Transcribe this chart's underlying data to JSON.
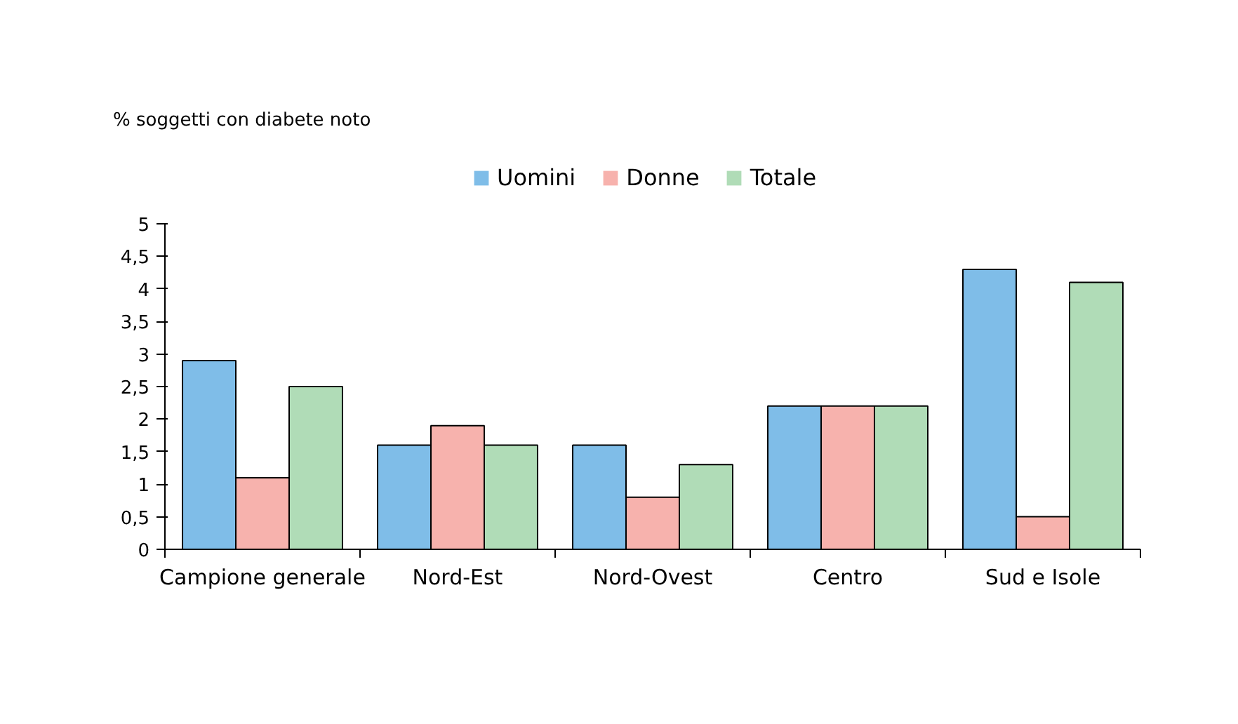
{
  "chart_data": {
    "type": "bar",
    "ylabel": "% soggetti con diabete noto",
    "categories": [
      "Campione generale",
      "Nord-Est",
      "Nord-Ovest",
      "Centro",
      "Sud e Isole"
    ],
    "series": [
      {
        "name": "Uomini",
        "color": "#7fbde8",
        "values": [
          2.9,
          1.6,
          1.6,
          2.2,
          4.3
        ]
      },
      {
        "name": "Donne",
        "color": "#f7b2ad",
        "values": [
          1.1,
          1.9,
          0.8,
          2.2,
          0.5
        ]
      },
      {
        "name": "Totale",
        "color": "#b0dcb7",
        "values": [
          2.5,
          1.6,
          1.3,
          2.2,
          4.1
        ]
      }
    ],
    "ylim": [
      0,
      5
    ],
    "yticks": [
      0,
      {
        "value": 0.5,
        "label": "0,5"
      },
      1,
      {
        "value": 1.5,
        "label": "1,5"
      },
      2,
      {
        "value": 2.5,
        "label": "2,5"
      },
      3,
      {
        "value": 3.5,
        "label": "3,5"
      },
      4,
      {
        "value": 4.5,
        "label": "4,5"
      },
      5
    ],
    "grid": false,
    "legend": "top"
  }
}
